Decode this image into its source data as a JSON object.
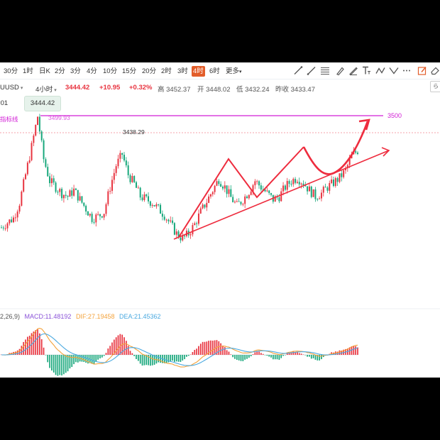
{
  "toolbar": {
    "timeframes": [
      "30分",
      "1时",
      "日K",
      "2分",
      "3分",
      "4分",
      "10分",
      "15分",
      "20分",
      "2时",
      "3时",
      "4时",
      "6时",
      "更多"
    ],
    "active": "4时",
    "tool_icons": [
      "trendline-icon",
      "ray-icon",
      "channel-icon",
      "brush-icon",
      "text-icon",
      "polyline-icon",
      "more-icon",
      "edit-icon",
      "eraser-icon"
    ]
  },
  "info": {
    "symbol": "UUSD",
    "interval": "4小时",
    "price": "3444.42",
    "change": "+10.95",
    "change_pct": "+0.32%",
    "high_label": "高 3452.37",
    "open_label": "开 3448.02",
    "low_label": "低 3432.24",
    "prev_close_label": "昨收 3433.47",
    "right_button": "ら"
  },
  "cursor": {
    "left_value": ".01",
    "price_tag": "3444.42"
  },
  "annotations": {
    "level_label": "3500",
    "high_marker": "3499.93",
    "indicator_label": "指标线",
    "peak_label": "3438.29"
  },
  "macd": {
    "params": "2,26,9)",
    "macd": "MACD:11.48192",
    "dif": "DIF:27.19458",
    "dea": "DEA:21.45362"
  },
  "colors": {
    "up": "#e8333f",
    "down": "#17a77b",
    "level_line": "#d21fd6",
    "trend": "#ee2c3e",
    "dif": "#f4a23a",
    "dea": "#4aa9e0",
    "macd_label": "#8a52d8"
  },
  "chart_data": {
    "type": "line",
    "series": [
      {
        "values": [
          3320,
          3328,
          3335,
          3360,
          3405,
          3450,
          3499,
          3430,
          3395,
          3385,
          3375,
          3370,
          3380,
          3365,
          3350,
          3335,
          3338,
          3345,
          3385,
          3420,
          3438,
          3405,
          3390,
          3370,
          3365,
          3360,
          3350,
          3340,
          3325,
          3310,
          3302,
          3310,
          3325,
          3345,
          3362,
          3380,
          3398,
          3385,
          3368,
          3355,
          3365,
          3378,
          3395,
          3385,
          3375,
          3365,
          3370,
          3385,
          3395,
          3400,
          3392,
          3380,
          3370,
          3375,
          3385,
          3392,
          3400,
          3412,
          3435,
          3444
        ]
      }
    ],
    "level": 3500
  }
}
